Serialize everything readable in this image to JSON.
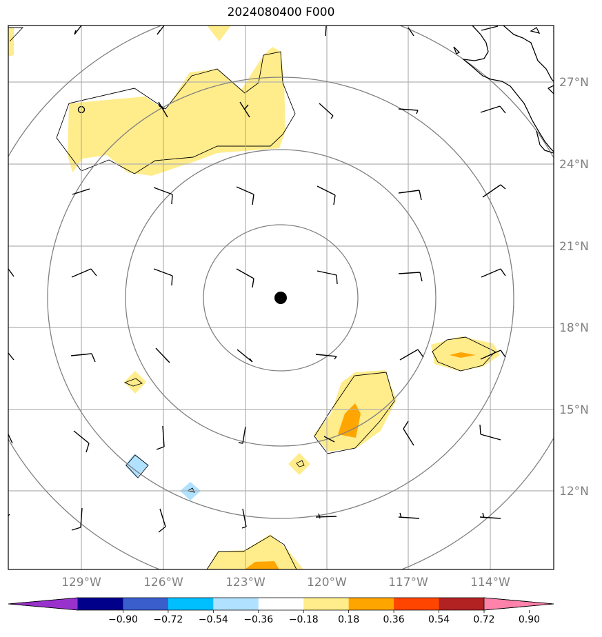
{
  "title": "2024080400 F000",
  "map": {
    "lat_labels": [
      "27°N",
      "24°N",
      "21°N",
      "18°N",
      "15°N",
      "12°N"
    ],
    "lon_labels": [
      "129°W",
      "126°W",
      "123°W",
      "120°W",
      "117°W",
      "114°W"
    ]
  },
  "colorbar": {
    "ticks": [
      "−0.90",
      "−0.72",
      "−0.54",
      "−0.36",
      "−0.18",
      "0.18",
      "0.36",
      "0.54",
      "0.72",
      "0.90"
    ],
    "colors": [
      "#9932cc",
      "#00008b",
      "#3a5fcd",
      "#00bfff",
      "#b0e2ff",
      "#ffffff",
      "#ffec8b",
      "#ffa500",
      "#ff4500",
      "#b22222",
      "#ff82ab"
    ]
  },
  "colors": {
    "grid": "#b0b0b0",
    "range_rings": "#808080",
    "coastline": "#000000",
    "center_marker": "#000000"
  }
}
